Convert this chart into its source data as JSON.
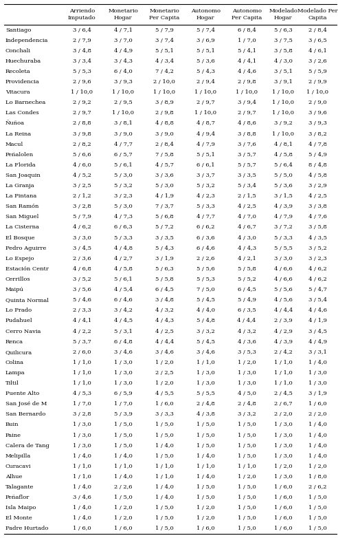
{
  "col_headers": [
    [
      "Arriendo",
      "Imputado"
    ],
    [
      "Monetario",
      "Hogar"
    ],
    [
      "Monetario",
      "Per Capita"
    ],
    [
      "Autonomo",
      "Hogar"
    ],
    [
      "Autonomo",
      "Per Capita"
    ],
    [
      "Modelado",
      "Hogar"
    ],
    [
      "Modelado Per",
      "Capita"
    ]
  ],
  "rows": [
    [
      "Santiago",
      "3 / 6,4",
      "4 / 7,1",
      "5 / 7,9",
      "5 / 7,4",
      "6 / 8,4",
      "5 / 6,3",
      "2 / 8,4"
    ],
    [
      "Independencia",
      "2 / 7,9",
      "3 / 7,0",
      "3 / 7,4",
      "3 / 6,9",
      "1 / 7,0",
      "3 / 7,5",
      "3 / 6,5"
    ],
    [
      "Conchali",
      "3 / 4,8",
      "4 / 4,9",
      "5 / 5,1",
      "5 / 5,1",
      "5 / 4,1",
      "3 / 5,8",
      "4 / 6,1"
    ],
    [
      "Huechuraba",
      "3 / 3,4",
      "3 / 4,3",
      "4 / 3,4",
      "5 / 3,6",
      "4 / 4,1",
      "4 / 3,0",
      "3 / 2,6"
    ],
    [
      "Recoleta",
      "5 / 5,3",
      "6 / 4,0",
      "7 / 4,2",
      "5 / 4,3",
      "4 / 4,6",
      "3 / 5,1",
      "5 / 5,9"
    ],
    [
      "Providencia",
      "2 / 9,6",
      "3 / 9,3",
      "2 / 10,0",
      "2 / 9,4",
      "2 / 9,8",
      "3 / 9,1",
      "2 / 9,9"
    ],
    [
      "Vitacura",
      "1 / 10,0",
      "1 / 10,0",
      "1 / 10,0",
      "1 / 10,0",
      "1 / 10,0",
      "1 / 10,0",
      "1 / 10,0"
    ],
    [
      "Lo Barnechea",
      "2 / 9,2",
      "2 / 9,5",
      "3 / 8,9",
      "2 / 9,7",
      "3 / 9,4",
      "1 / 10,0",
      "2 / 9,0"
    ],
    [
      "Las Condes",
      "2 / 9,7",
      "1 / 10,0",
      "2 / 9,8",
      "1 / 10,0",
      "2 / 9,7",
      "1 / 10,0",
      "3 / 9,6"
    ],
    [
      "Ñuñoa",
      "2 / 8,8",
      "3 / 8,1",
      "4 / 8,8",
      "4 / 8,7",
      "4 / 8,6",
      "3 / 9,2",
      "3 / 9,3"
    ],
    [
      "La Reina",
      "3 / 9,8",
      "3 / 9,0",
      "3 / 9,0",
      "4 / 9,4",
      "3 / 8,8",
      "1 / 10,0",
      "3 / 8,2"
    ],
    [
      "Macul",
      "2 / 8,2",
      "4 / 7,7",
      "2 / 8,4",
      "4 / 7,9",
      "3 / 7,6",
      "4 / 8,1",
      "4 / 7,8"
    ],
    [
      "Peñalolen",
      "5 / 6,6",
      "6 / 5,7",
      "7 / 5,8",
      "5 / 5,1",
      "3 / 5,7",
      "4 / 5,8",
      "5 / 4,9"
    ],
    [
      "La Florida",
      "4 / 6,0",
      "5 / 6,1",
      "4 / 5,7",
      "6 / 6,1",
      "5 / 5,7",
      "5 / 6,4",
      "8 / 4,8"
    ],
    [
      "San Joaquin",
      "4 / 5,2",
      "5 / 3,0",
      "3 / 3,6",
      "3 / 3,7",
      "3 / 3,5",
      "5 / 5,0",
      "4 / 5,8"
    ],
    [
      "La Granja",
      "3 / 2,5",
      "5 / 3,2",
      "5 / 3,0",
      "5 / 3,2",
      "5 / 3,4",
      "5 / 3,6",
      "3 / 2,9"
    ],
    [
      "La Pintana",
      "2 / 1,2",
      "3 / 2,3",
      "4 / 1,9",
      "4 / 2,3",
      "2 / 1,5",
      "3 / 1,5",
      "4 / 2,5"
    ],
    [
      "San Ramón",
      "3 / 2,8",
      "5 / 3,0",
      "7 / 3,7",
      "5 / 3,3",
      "4 / 2,5",
      "4 / 3,9",
      "3 / 3,8"
    ],
    [
      "San Miguel",
      "5 / 7,9",
      "4 / 7,3",
      "5 / 6,8",
      "4 / 7,7",
      "4 / 7,0",
      "4 / 7,9",
      "4 / 7,6"
    ],
    [
      "La Cisterna",
      "4 / 6,2",
      "6 / 6,3",
      "5 / 7,2",
      "6 / 6,2",
      "4 / 6,7",
      "3 / 7,2",
      "3 / 5,8"
    ],
    [
      "El Bosque",
      "3 / 3,0",
      "5 / 3,3",
      "3 / 3,5",
      "6 / 3,6",
      "4 / 3,0",
      "5 / 3,3",
      "4 / 3,5"
    ],
    [
      "Pedro Aguirre",
      "3 / 4,5",
      "4 / 4,8",
      "5 / 4,3",
      "6 / 4,6",
      "4 / 4,3",
      "5 / 5,5",
      "3 / 5,2"
    ],
    [
      "Lo Espejo",
      "2 / 3,6",
      "4 / 2,7",
      "3 / 1,9",
      "2 / 2,6",
      "4 / 2,1",
      "3 / 3,0",
      "3 / 2,3"
    ],
    [
      "Estación Centr",
      "4 / 6,8",
      "4 / 5,8",
      "5 / 6,3",
      "5 / 5,6",
      "5 / 5,8",
      "4 / 6,6",
      "4 / 6,2"
    ],
    [
      "Cerrillos",
      "3 / 5,2",
      "5 / 6,1",
      "5 / 5,8",
      "5 / 5,3",
      "5 / 5,2",
      "4 / 6,6",
      "4 / 6,2"
    ],
    [
      "Maipú",
      "3 / 5,6",
      "4 / 5,4",
      "6 / 4,5",
      "7 / 5,0",
      "6 / 4,5",
      "5 / 5,6",
      "5 / 4,7"
    ],
    [
      "Quinta Normal",
      "5 / 4,6",
      "6 / 4,6",
      "3 / 4,8",
      "5 / 4,5",
      "5 / 4,9",
      "4 / 5,6",
      "3 / 5,4"
    ],
    [
      "Lo Prado",
      "2 / 3,3",
      "3 / 4,2",
      "4 / 3,2",
      "4 / 4,0",
      "6 / 3,5",
      "4 / 4,4",
      "4 / 4,6"
    ],
    [
      "Pudahuel",
      "4 / 4,1",
      "4 / 4,5",
      "4 / 4,3",
      "5 / 4,8",
      "4 / 4,4",
      "2 / 3,9",
      "4 / 1,9"
    ],
    [
      "Cerro Navia",
      "4 / 2,2",
      "5 / 3,1",
      "4 / 2,5",
      "3 / 3,2",
      "4 / 3,2",
      "4 / 2,9",
      "3 / 4,5"
    ],
    [
      "Renca",
      "5 / 3,7",
      "6 / 4,8",
      "4 / 4,4",
      "5 / 4,5",
      "4 / 3,6",
      "4 / 3,9",
      "4 / 4,9"
    ],
    [
      "Quilicura",
      "2 / 6,0",
      "3 / 4,6",
      "3 / 4,6",
      "3 / 4,6",
      "3 / 5,3",
      "2 / 4,2",
      "3 / 3,1"
    ],
    [
      "Colina",
      "1 / 1,0",
      "1 / 3,0",
      "1 / 2,0",
      "1 / 1,0",
      "1 / 2,0",
      "1 / 1,0",
      "1 / 4,0"
    ],
    [
      "Lampa",
      "1 / 1,0",
      "1 / 3,0",
      "2 / 2,5",
      "1 / 3,0",
      "1 / 3,0",
      "1 / 1,0",
      "1 / 3,0"
    ],
    [
      "Tiltil",
      "1 / 1,0",
      "1 / 3,0",
      "1 / 2,0",
      "1 / 3,0",
      "1 / 3,0",
      "1 / 1,0",
      "1 / 3,0"
    ],
    [
      "Puente Alto",
      "4 / 5,3",
      "6 / 5,9",
      "4 / 5,5",
      "5 / 5,5",
      "4 / 5,0",
      "2 / 4,5",
      "3 / 1,9"
    ],
    [
      "San José de M",
      "1 / 7,0",
      "1 / 7,0",
      "1 / 6,0",
      "2 / 4,8",
      "2 / 4,8",
      "2 / 6,7",
      "1 / 6,0"
    ],
    [
      "San Bernardo",
      "3 / 2,8",
      "5 / 3,9",
      "3 / 3,3",
      "4 / 3,8",
      "3 / 3,2",
      "2 / 2,0",
      "2 / 2,0"
    ],
    [
      "Buin",
      "1 / 3,0",
      "1 / 5,0",
      "1 / 5,0",
      "1 / 5,0",
      "1 / 5,0",
      "1 / 3,0",
      "1 / 4,0"
    ],
    [
      "Paine",
      "1 / 3,0",
      "1 / 5,0",
      "1 / 5,0",
      "1 / 5,0",
      "1 / 5,0",
      "1 / 3,0",
      "1 / 4,0"
    ],
    [
      "Calera de Tang",
      "1 / 3,0",
      "1 / 5,0",
      "1 / 4,0",
      "1 / 5,0",
      "1 / 5,0",
      "1 / 3,0",
      "1 / 4,0"
    ],
    [
      "Melipilla",
      "1 / 4,0",
      "1 / 4,0",
      "1 / 5,0",
      "1 / 4,0",
      "1 / 5,0",
      "1 / 3,0",
      "1 / 4,0"
    ],
    [
      "Curacavi",
      "1 / 1,0",
      "1 / 1,0",
      "1 / 1,0",
      "1 / 1,0",
      "1 / 1,0",
      "1 / 2,0",
      "1 / 2,0"
    ],
    [
      "Alhue",
      "1 / 1,0",
      "1 / 4,0",
      "1 / 1,0",
      "1 / 4,0",
      "1 / 2,0",
      "1 / 3,0",
      "1 / 8,0"
    ],
    [
      "Talagante",
      "1 / 4,0",
      "2 / 2,6",
      "1 / 4,0",
      "1 / 5,0",
      "1 / 5,0",
      "1 / 6,0",
      "2 / 6,2"
    ],
    [
      "Peñaflor",
      "3 / 4,6",
      "1 / 5,0",
      "1 / 4,0",
      "1 / 5,0",
      "1 / 5,0",
      "1 / 6,0",
      "1 / 5,0"
    ],
    [
      "Isla Maipo",
      "1 / 4,0",
      "1 / 2,0",
      "1 / 5,0",
      "1 / 2,0",
      "1 / 5,0",
      "1 / 6,0",
      "1 / 5,0"
    ],
    [
      "El Monte",
      "1 / 4,0",
      "1 / 2,0",
      "1 / 5,0",
      "1 / 2,0",
      "1 / 5,0",
      "1 / 6,0",
      "1 / 5,0"
    ],
    [
      "Padre Hurtado",
      "1 / 6,0",
      "1 / 6,0",
      "1 / 5,0",
      "1 / 6,0",
      "1 / 5,0",
      "1 / 6,0",
      "1 / 5,0"
    ]
  ],
  "font_family": "serif",
  "header_fontsize": 6.0,
  "cell_fontsize": 6.0,
  "col_name_fontsize": 6.0
}
